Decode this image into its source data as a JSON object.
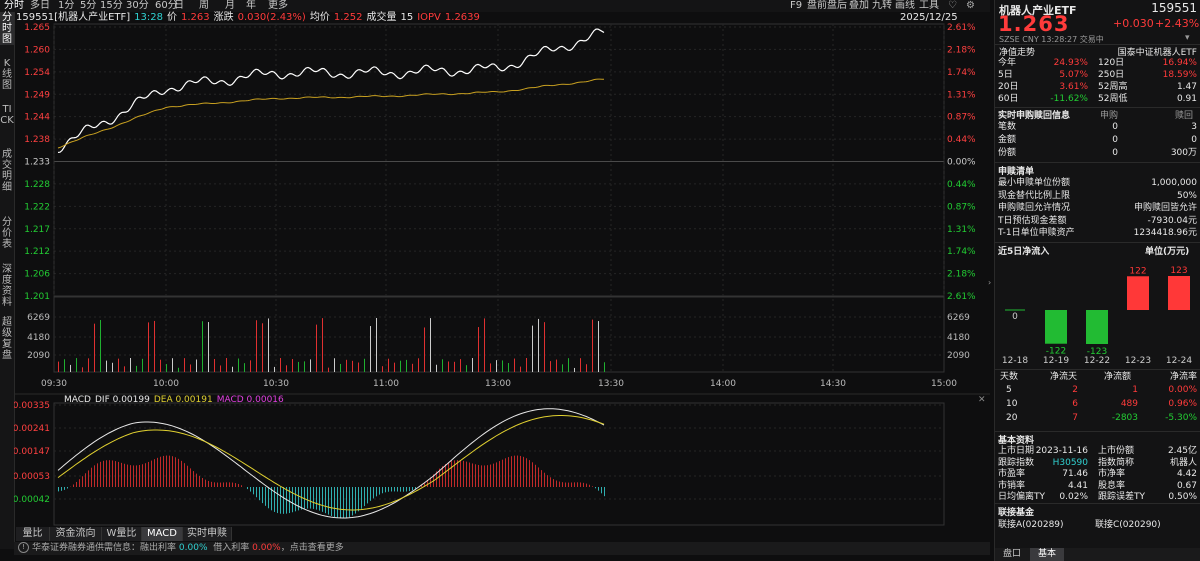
{
  "toolbar": {
    "periods": [
      "分时",
      "多日",
      "1分",
      "5分",
      "15分",
      "30分",
      "60分",
      "日",
      "周",
      "月",
      "年",
      "更多"
    ],
    "right_items": [
      "F9",
      "盘前盘后",
      "叠加",
      "九转",
      "画线",
      "工具"
    ],
    "fav_icon": "heart-icon",
    "settings_icon": "gear-icon"
  },
  "left_tabs": [
    "分时图",
    "K线图",
    "TICK",
    "成交明细",
    "分价表",
    "深度资料",
    "超级复盘"
  ],
  "info": {
    "code_name": "159551[机器人产业ETF]",
    "time": "13:28",
    "price_label": "价",
    "price": "1.263",
    "chg_label": "涨跌",
    "chg": "0.030(2.43%)",
    "avg_label": "均价",
    "avg": "1.252",
    "vol_label": "成交量",
    "vol": "15",
    "iopv_label": "IOPV",
    "iopv": "1.2639",
    "date": "2025/12/25"
  },
  "price_axis": {
    "left": [
      "1.265",
      "1.260",
      "1.254",
      "1.249",
      "1.244",
      "1.238",
      "1.233",
      "1.228",
      "1.222",
      "1.217",
      "1.212",
      "1.206",
      "1.201"
    ],
    "right": [
      "2.61%",
      "2.18%",
      "1.74%",
      "1.31%",
      "0.87%",
      "0.44%",
      "0.00%",
      "0.44%",
      "0.87%",
      "1.31%",
      "1.74%",
      "2.18%",
      "2.61%"
    ]
  },
  "vol_axis": [
    "6269",
    "4180",
    "2090"
  ],
  "time_axis": [
    "09:30",
    "10:00",
    "10:30",
    "11:00",
    "13:00",
    "13:30",
    "14:00",
    "14:30",
    "15:00"
  ],
  "macd": {
    "title": "MACD",
    "dif_label": "DIF 0.00199",
    "dea_label": "DEA 0.00191",
    "macd_label": "MACD 0.00016",
    "axis": [
      "0.00335",
      "0.00241",
      "0.00147",
      "0.00053",
      "-0.00042"
    ]
  },
  "bottom_tabs": [
    "量比",
    "资金流向",
    "W量比",
    "MACD",
    "实时申赎"
  ],
  "bottom_bar": {
    "label": "华泰证券融券通供需信息：",
    "rate1_label": "融出利率",
    "rate1": "0.00%",
    "rate2_label": "借入利率",
    "rate2": "0.00%",
    "more": "点击查看更多"
  },
  "right": {
    "name": "机器人产业ETF",
    "code": "159551",
    "price": "1.263",
    "change": "+0.030",
    "change_pct": "+2.43%",
    "market": "SZSE",
    "currency": "CNY",
    "time": "13:28:27",
    "status": "交易中",
    "nav_trend_label": "净值走势",
    "index_name": "国泰中证机器人ETF",
    "perf": [
      {
        "l1": "今年",
        "v1": "24.93%",
        "l2": "120日",
        "v2": "16.94%"
      },
      {
        "l1": "5日",
        "v1": "5.07%",
        "l2": "250日",
        "v2": "18.59%"
      },
      {
        "l1": "20日",
        "v1": "3.61%",
        "l2": "52周高",
        "v2": "1.47"
      },
      {
        "l1": "60日",
        "v1": "-11.62%",
        "l2": "52周低",
        "v2": "0.91"
      }
    ],
    "redeem_title": "实时申购赎回信息",
    "redeem_h1": "申购",
    "redeem_h2": "赎回",
    "redeem_rows": [
      {
        "label": "笔数",
        "a": "0",
        "b": "3"
      },
      {
        "label": "金额",
        "a": "0",
        "b": "0"
      },
      {
        "label": "份额",
        "a": "0",
        "b": "300万"
      }
    ],
    "list_title": "申赎清单",
    "list_rows": [
      {
        "label": "最小申赎单位份额",
        "value": "1,000,000"
      },
      {
        "label": "现金替代比例上限",
        "value": "50%"
      },
      {
        "label": "申购赎回允许情况",
        "value": "申购赎回皆允许"
      },
      {
        "label": "T日预估现金差额",
        "value": "-7930.04元"
      },
      {
        "label": "T-1日单位申赎资产",
        "value": "1234418.96元"
      }
    ],
    "flow_title": "近5日净流入",
    "flow_unit": "单位(万元)",
    "flow_data": [
      {
        "date": "12-18",
        "value": 0,
        "label": "0"
      },
      {
        "date": "12-19",
        "value": -122,
        "label": "-122"
      },
      {
        "date": "12-22",
        "value": -123,
        "label": "-123"
      },
      {
        "date": "12-23",
        "value": 122,
        "label": "122"
      },
      {
        "date": "12-24",
        "value": 123,
        "label": "123"
      }
    ],
    "flow_table_head": [
      "天数",
      "净流天",
      "净流额",
      "净流率"
    ],
    "flow_table": [
      {
        "d": "5",
        "n": "2",
        "a": "1",
        "r": "0.00%"
      },
      {
        "d": "10",
        "n": "6",
        "a": "489",
        "r": "0.96%"
      },
      {
        "d": "20",
        "n": "7",
        "a": "-2803",
        "r": "-5.30%"
      }
    ],
    "basic_title": "基本资料",
    "basic_rows": [
      {
        "l1": "上市日期",
        "v1": "2023-11-16",
        "l2": "上市份额",
        "v2": "2.45亿"
      },
      {
        "l1": "跟踪指数",
        "v1": "H30590",
        "l2": "指数简称",
        "v2": "机器人"
      },
      {
        "l1": "市盈率",
        "v1": "71.46",
        "l2": "市净率",
        "v2": "4.42"
      },
      {
        "l1": "市销率",
        "v1": "4.41",
        "l2": "股息率",
        "v2": "0.67"
      },
      {
        "l1": "日均偏离TY",
        "v1": "0.02%",
        "l2": "跟踪误差TY",
        "v2": "0.50%"
      }
    ],
    "linked_title": "联接基金",
    "linked_a": "联接A(020289)",
    "linked_c": "联接C(020290)",
    "tabs": [
      "盘口",
      "基本"
    ]
  },
  "chart_data": {
    "type": "line",
    "title": "159551[机器人产业ETF]",
    "prev_close": 1.233,
    "ylim": [
      1.201,
      1.265
    ],
    "x": [
      "09:30",
      "10:00",
      "10:30",
      "11:00",
      "13:00",
      "13:28"
    ],
    "series": [
      {
        "name": "价",
        "values": [
          1.236,
          1.25,
          1.2535,
          1.2535,
          1.2545,
          1.263
        ]
      },
      {
        "name": "均价",
        "values": [
          1.236,
          1.2455,
          1.2475,
          1.248,
          1.249,
          1.252
        ]
      }
    ]
  }
}
